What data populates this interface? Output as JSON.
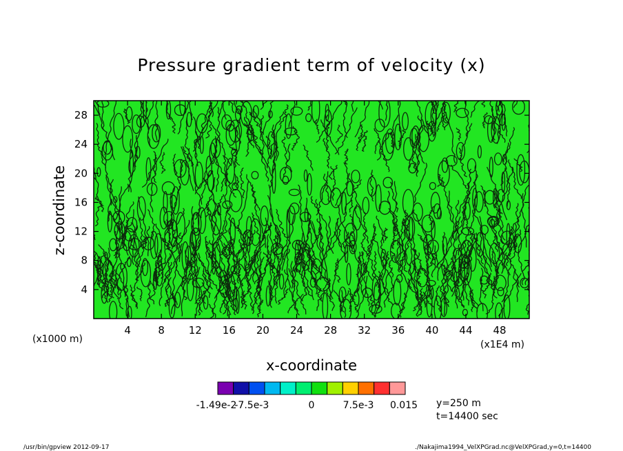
{
  "chart_data": {
    "type": "heatmap",
    "title": "Pressure gradient term of velocity (x)",
    "xlabel": "x-coordinate",
    "ylabel": "z-coordinate",
    "x_unit_left": "(x1000 m)",
    "x_unit_right": "(x1E4 m)",
    "xticks": [
      "4",
      "8",
      "12",
      "16",
      "20",
      "24",
      "28",
      "32",
      "36",
      "40",
      "44",
      "48"
    ],
    "yticks": [
      "4",
      "8",
      "12",
      "16",
      "20",
      "24",
      "28"
    ],
    "xlim": [
      0,
      51.5
    ],
    "ylim": [
      0,
      30
    ],
    "colorbar": {
      "colors": [
        "#7a00b0",
        "#1010a8",
        "#0050f0",
        "#00b8f0",
        "#00f0c8",
        "#00ee70",
        "#10e010",
        "#a0f000",
        "#ffd000",
        "#ff7000",
        "#ff3030",
        "#ff9898"
      ],
      "tick_labels": [
        "-1.49e-2",
        "-7.5e-3",
        "0",
        "7.5e-3",
        "0.015"
      ]
    },
    "dominant_fill": "#22e622",
    "annotations": [
      "y=250 m",
      "t=14400 sec"
    ]
  },
  "footer": {
    "left": "/usr/bin/gpview   2012-09-17",
    "right": "./Nakajima1994_VelXPGrad.nc@VelXPGrad,y=0,t=14400"
  }
}
